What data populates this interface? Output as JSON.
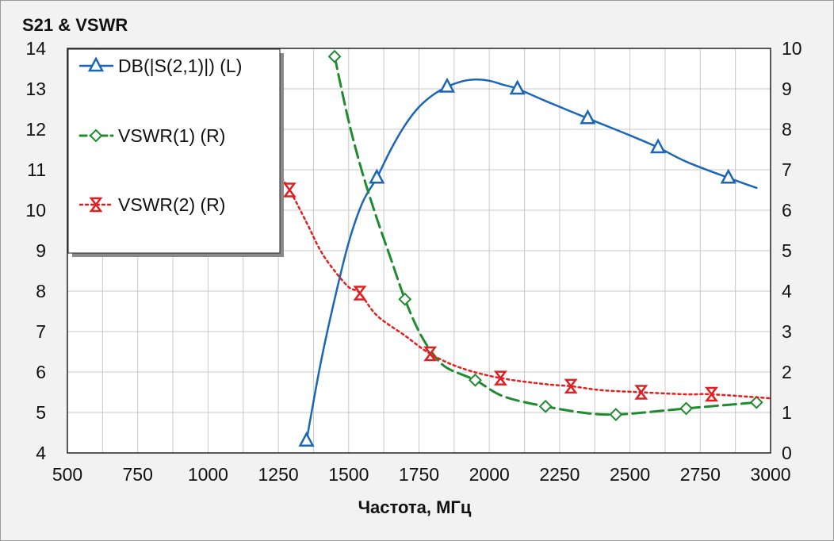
{
  "chart_data": {
    "type": "line",
    "title": "S21 & VSWR",
    "xlabel": "Частота, МГц",
    "ylabel": "",
    "y2label": "",
    "xlim": [
      500,
      3000
    ],
    "ylim": [
      4,
      14
    ],
    "y2lim": [
      0,
      10
    ],
    "xticks": [
      500,
      750,
      1000,
      1250,
      1500,
      1750,
      2000,
      2250,
      2500,
      2750,
      3000
    ],
    "yticks": [
      4,
      5,
      6,
      7,
      8,
      9,
      10,
      11,
      12,
      13,
      14
    ],
    "y2ticks": [
      0,
      1,
      2,
      3,
      4,
      5,
      6,
      7,
      8,
      9,
      10
    ],
    "grid": true,
    "legend_position": "top-left",
    "series": [
      {
        "name": "DB(|S(2,1)|) (L)",
        "axis": "left",
        "color": "#1a66b8",
        "marker": "triangle",
        "style": "solid",
        "x": [
          1350,
          1400,
          1450,
          1500,
          1550,
          1600,
          1650,
          1700,
          1750,
          1800,
          1850,
          1900,
          1950,
          2000,
          2050,
          2100,
          2200,
          2350,
          2500,
          2600,
          2700,
          2850,
          2950
        ],
        "y": [
          4.3,
          6.2,
          7.8,
          9.2,
          10.2,
          10.8,
          11.5,
          12.1,
          12.55,
          12.85,
          13.05,
          13.18,
          13.23,
          13.2,
          13.1,
          13.0,
          12.7,
          12.27,
          11.85,
          11.55,
          11.2,
          10.8,
          10.55
        ],
        "markers_x": [
          1350,
          1600,
          1850,
          2100,
          2350,
          2600,
          2850
        ]
      },
      {
        "name": "VSWR(1) (R)",
        "axis": "right",
        "color": "#1e8c2e",
        "marker": "diamond",
        "style": "dashed",
        "x": [
          1450,
          1500,
          1550,
          1600,
          1650,
          1700,
          1750,
          1800,
          1850,
          1950,
          2050,
          2200,
          2350,
          2450,
          2550,
          2700,
          2950
        ],
        "y": [
          9.8,
          8.2,
          6.9,
          5.8,
          4.8,
          3.8,
          3.0,
          2.45,
          2.1,
          1.8,
          1.4,
          1.15,
          0.98,
          0.95,
          1.0,
          1.1,
          1.25
        ],
        "markers_x": [
          1450,
          1700,
          1950,
          2200,
          2450,
          2700,
          2950
        ]
      },
      {
        "name": "VSWR(2) (R)",
        "axis": "right",
        "color": "#e02020",
        "marker": "hourglass",
        "style": "dotted",
        "x": [
          1250,
          1290,
          1350,
          1400,
          1450,
          1500,
          1540,
          1600,
          1700,
          1790,
          1900,
          2040,
          2200,
          2290,
          2400,
          2540,
          2700,
          2790,
          3000
        ],
        "y": [
          6.9,
          6.5,
          5.7,
          5.0,
          4.5,
          4.1,
          3.95,
          3.4,
          2.9,
          2.45,
          2.1,
          1.85,
          1.7,
          1.65,
          1.55,
          1.5,
          1.45,
          1.45,
          1.35
        ],
        "markers_x": [
          1290,
          1540,
          1790,
          2040,
          2290,
          2540,
          2790
        ]
      }
    ]
  }
}
